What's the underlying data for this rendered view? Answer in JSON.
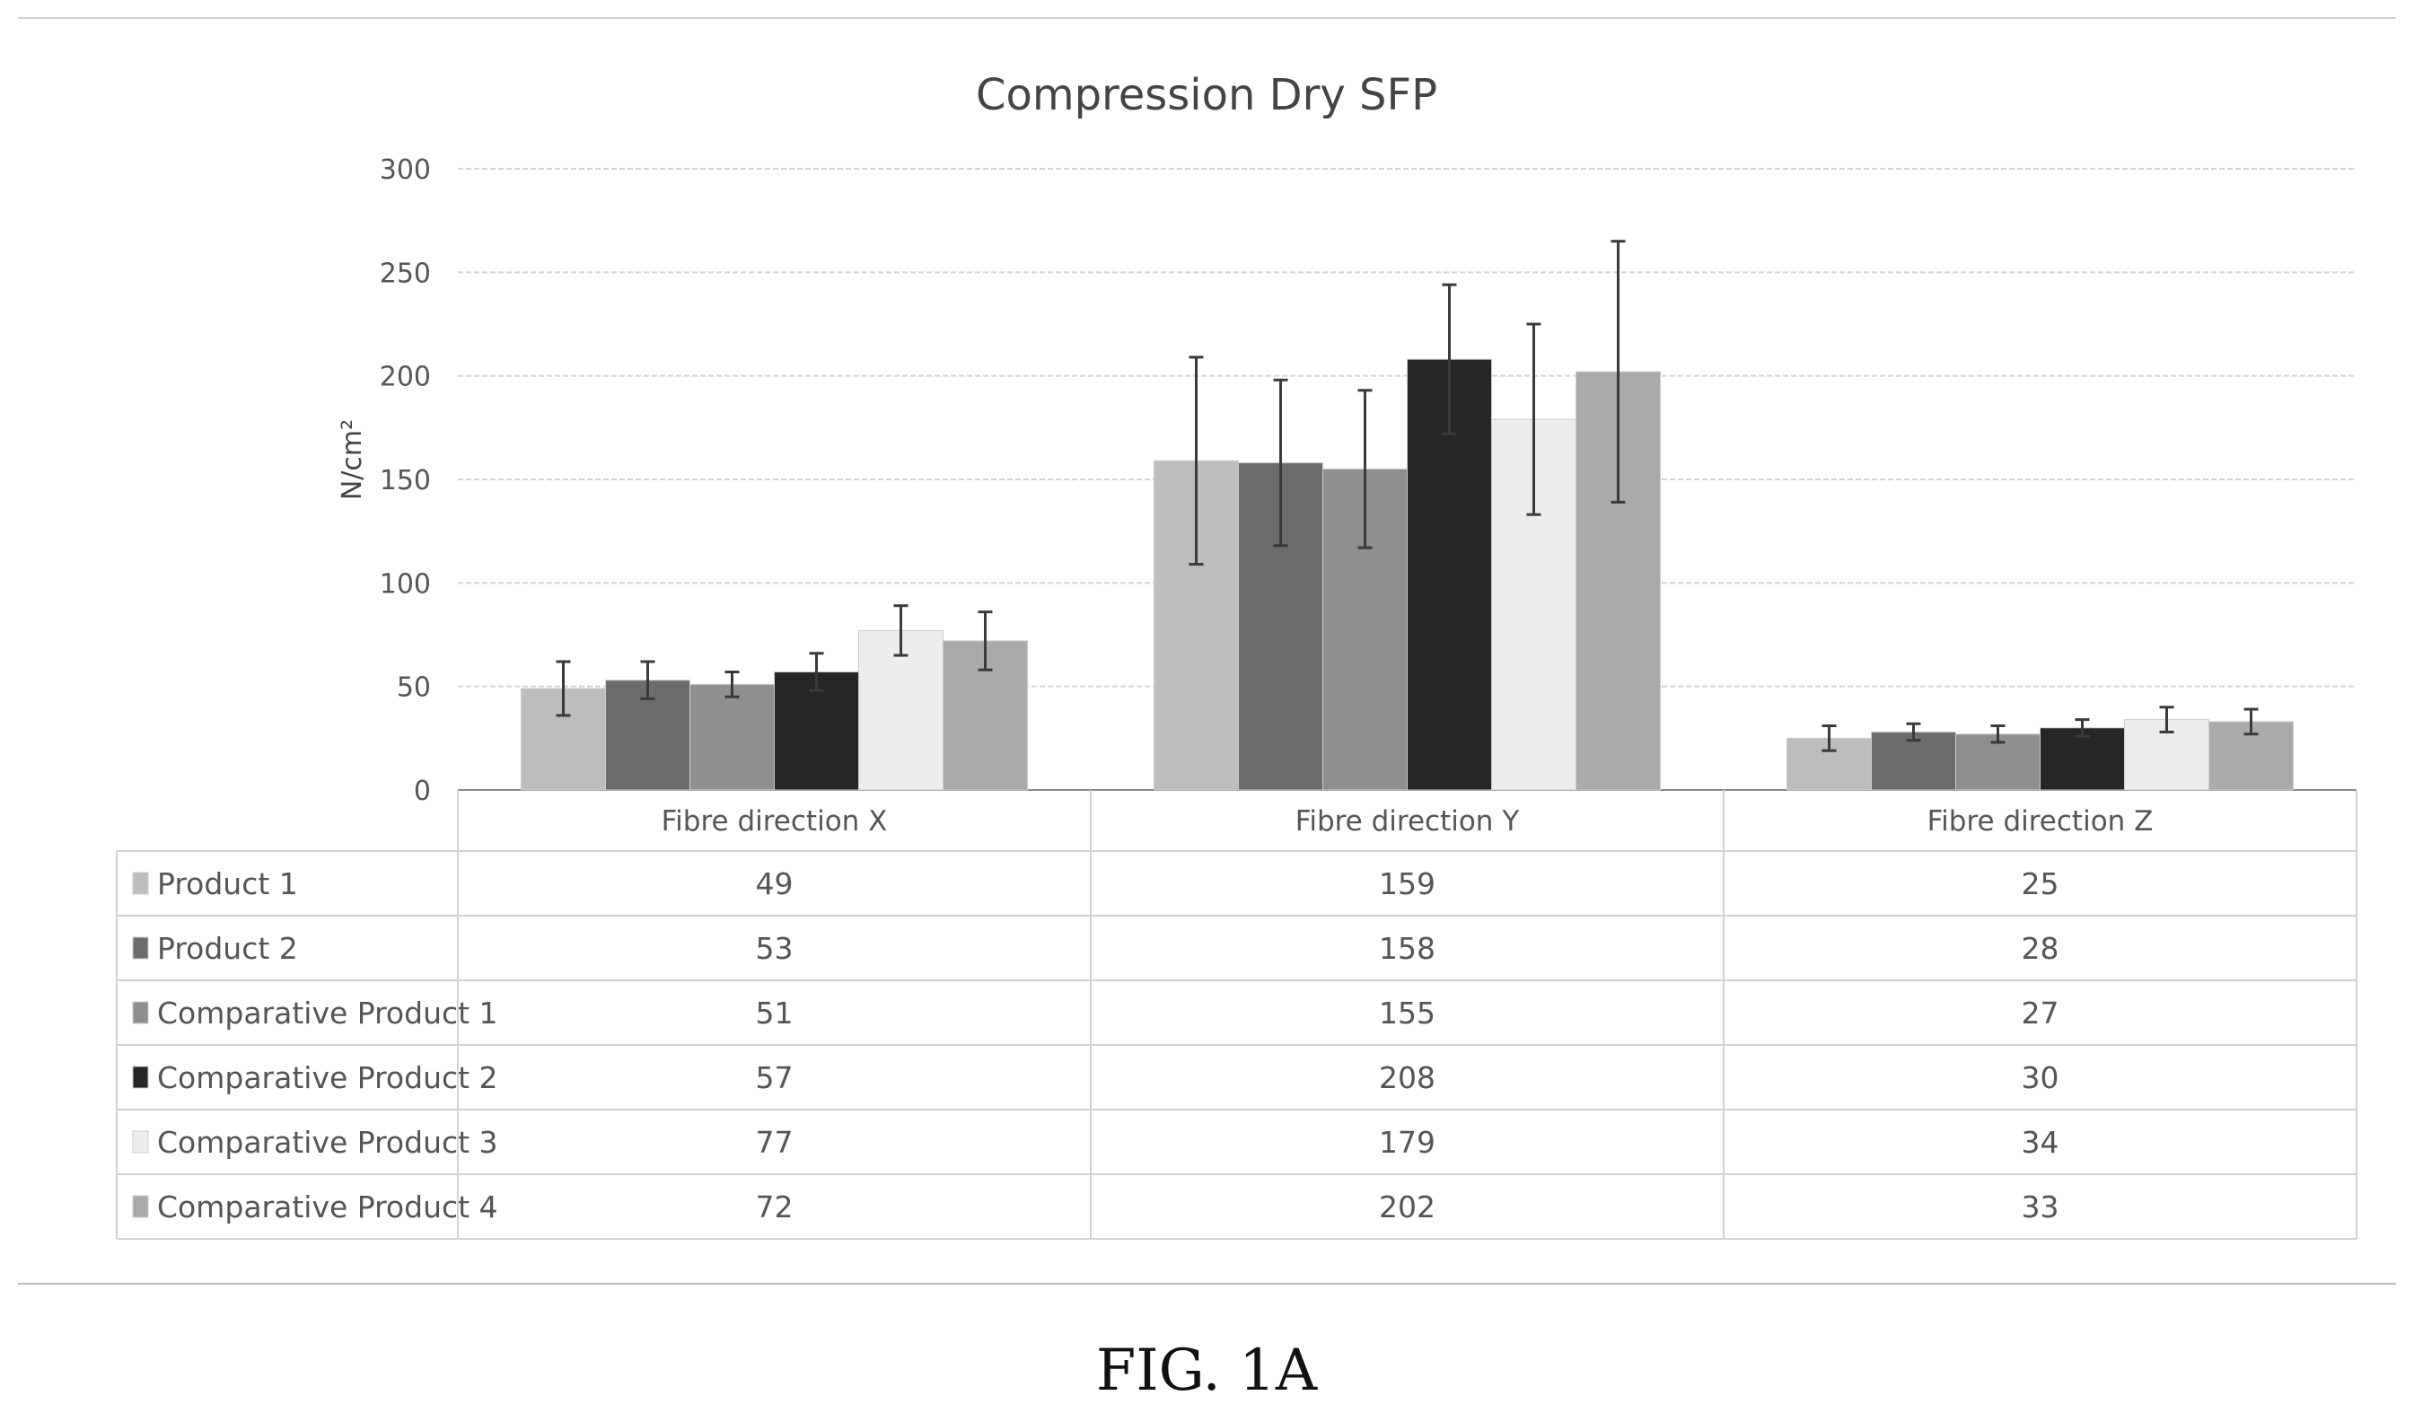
{
  "figure": {
    "caption": "FIG. 1A"
  },
  "chart_data": {
    "type": "bar",
    "title": "Compression  Dry SFP",
    "xlabel": "",
    "ylabel": "N/cm²",
    "ylim": [
      0,
      300
    ],
    "yticks": [
      0,
      50,
      100,
      150,
      200,
      250,
      300
    ],
    "grid": true,
    "legend": "data table below chart",
    "categories": [
      "Fibre direction X",
      "Fibre direction Y",
      "Fibre direction Z"
    ],
    "series": [
      {
        "name": "Product 1",
        "values": [
          49,
          159,
          25
        ],
        "errors": [
          13,
          50,
          6
        ],
        "color": "#bdbdbd"
      },
      {
        "name": "Product 2",
        "values": [
          53,
          158,
          28
        ],
        "errors": [
          9,
          40,
          4
        ],
        "color": "#6c6c6c"
      },
      {
        "name": "Comparative Product 1",
        "values": [
          51,
          155,
          27
        ],
        "errors": [
          6,
          38,
          4
        ],
        "color": "#8f8f8f"
      },
      {
        "name": "Comparative Product 2",
        "values": [
          57,
          208,
          30
        ],
        "errors": [
          9,
          36,
          4
        ],
        "color": "#262626"
      },
      {
        "name": "Comparative Product 3",
        "values": [
          77,
          179,
          34
        ],
        "errors": [
          12,
          46,
          6
        ],
        "color": "#ededed"
      },
      {
        "name": "Comparative Product 4",
        "values": [
          72,
          202,
          33
        ],
        "errors": [
          14,
          63,
          6
        ],
        "color": "#aaaaaa"
      }
    ]
  }
}
